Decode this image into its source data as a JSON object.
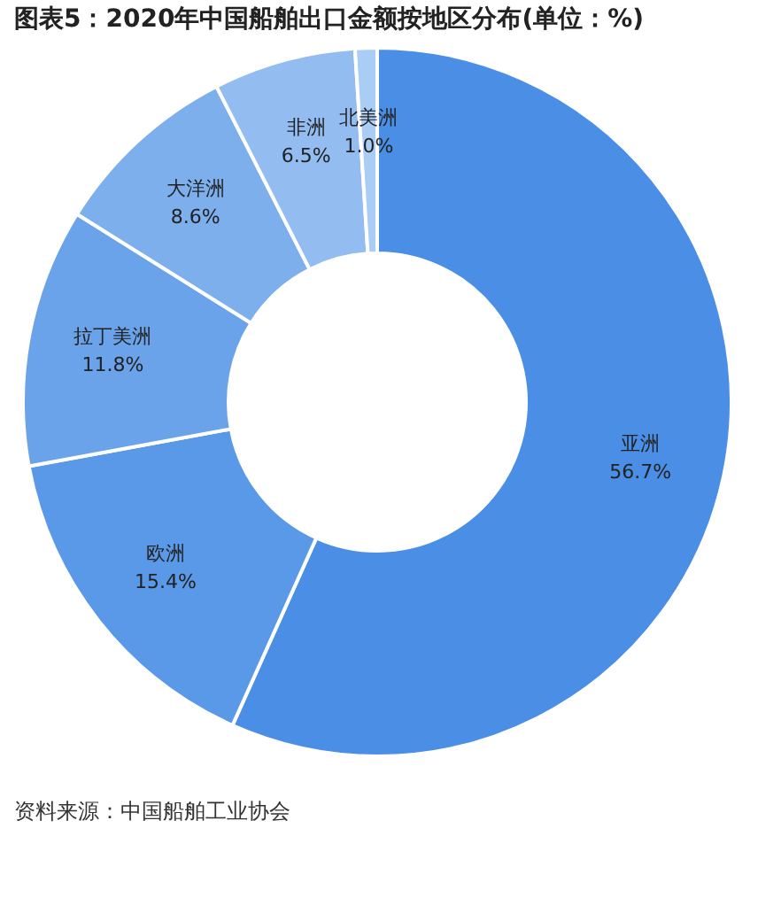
{
  "chart_data": {
    "type": "donut",
    "title": "图表5：2020年中国船舶出口金额按地区分布(单位：%)",
    "categories": [
      "亚洲",
      "欧洲",
      "拉丁美洲",
      "大洋洲",
      "非洲",
      "北美洲"
    ],
    "values": [
      56.7,
      15.4,
      11.8,
      8.6,
      6.5,
      1.0
    ],
    "value_labels": [
      "56.7%",
      "15.4%",
      "11.8%",
      "8.6%",
      "6.5%",
      "1.0%"
    ],
    "colors": [
      "#4a8ee6",
      "#5a98e8",
      "#6aa3ea",
      "#7dafed",
      "#93bdf1",
      "#aacdf5"
    ],
    "legend": false,
    "annotations": [
      "资料来源：中国船舶工业协会"
    ]
  }
}
